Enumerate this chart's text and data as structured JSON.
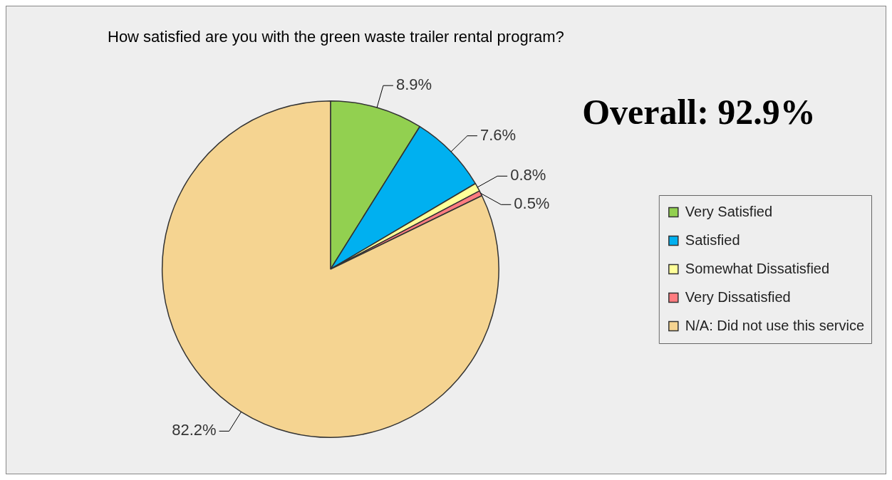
{
  "chart_data": {
    "type": "pie",
    "title": "How satisfied are you with the green waste trailer rental program?",
    "categories": [
      "Very Satisfied",
      "Satisfied",
      "Somewhat Dissatisfied",
      "Very Dissatisfied",
      "N/A: Did not use this service"
    ],
    "values": [
      8.9,
      7.6,
      0.8,
      0.5,
      82.2
    ],
    "value_labels": [
      "8.9%",
      "7.6%",
      "0.8%",
      "0.5%",
      "82.2%"
    ],
    "colors": [
      "#92d050",
      "#00b0f0",
      "#ffff99",
      "#ff7c80",
      "#f5d491"
    ],
    "legend": "right",
    "annotations": [
      "Overall: 92.9%"
    ]
  }
}
